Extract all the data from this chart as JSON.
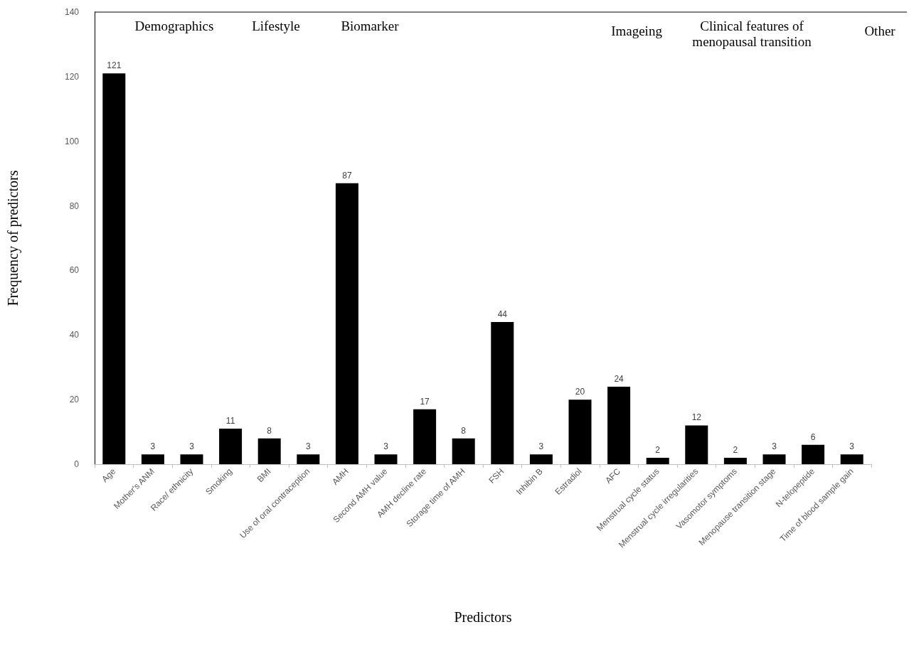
{
  "chart_data": {
    "type": "bar",
    "xlabel": "Predictors",
    "ylabel": "Frequency of predictors",
    "categories": [
      "Age",
      "Mother's ANM",
      "Race/ ethnicity",
      "Smoking",
      "BMI",
      "Use of oral contraception",
      "AMH",
      "Second AMH value",
      "AMH decline rate",
      "Storage time of AMH",
      "FSH",
      "Inhibin B",
      "Estradiol",
      "AFC",
      "Menstrual cycle status",
      "Menstrual cycle irregularities",
      "Vasomotor symptoms",
      "Menopause transition stage",
      "N-telopeptide",
      "Time of blood sample gain"
    ],
    "values": [
      121,
      3,
      3,
      11,
      8,
      3,
      87,
      3,
      17,
      8,
      44,
      3,
      20,
      24,
      2,
      12,
      2,
      3,
      6,
      3
    ],
    "color": "#000000",
    "ylim": [
      0,
      140
    ],
    "yticks": [
      0,
      20,
      40,
      60,
      80,
      100,
      120,
      140
    ],
    "grid": false,
    "data_labels": true,
    "annotations": [
      "Demographics",
      "Lifestyle",
      "Biomarker",
      "Imageing",
      "Clinical features of\nmenopausal transition",
      "Other"
    ]
  }
}
